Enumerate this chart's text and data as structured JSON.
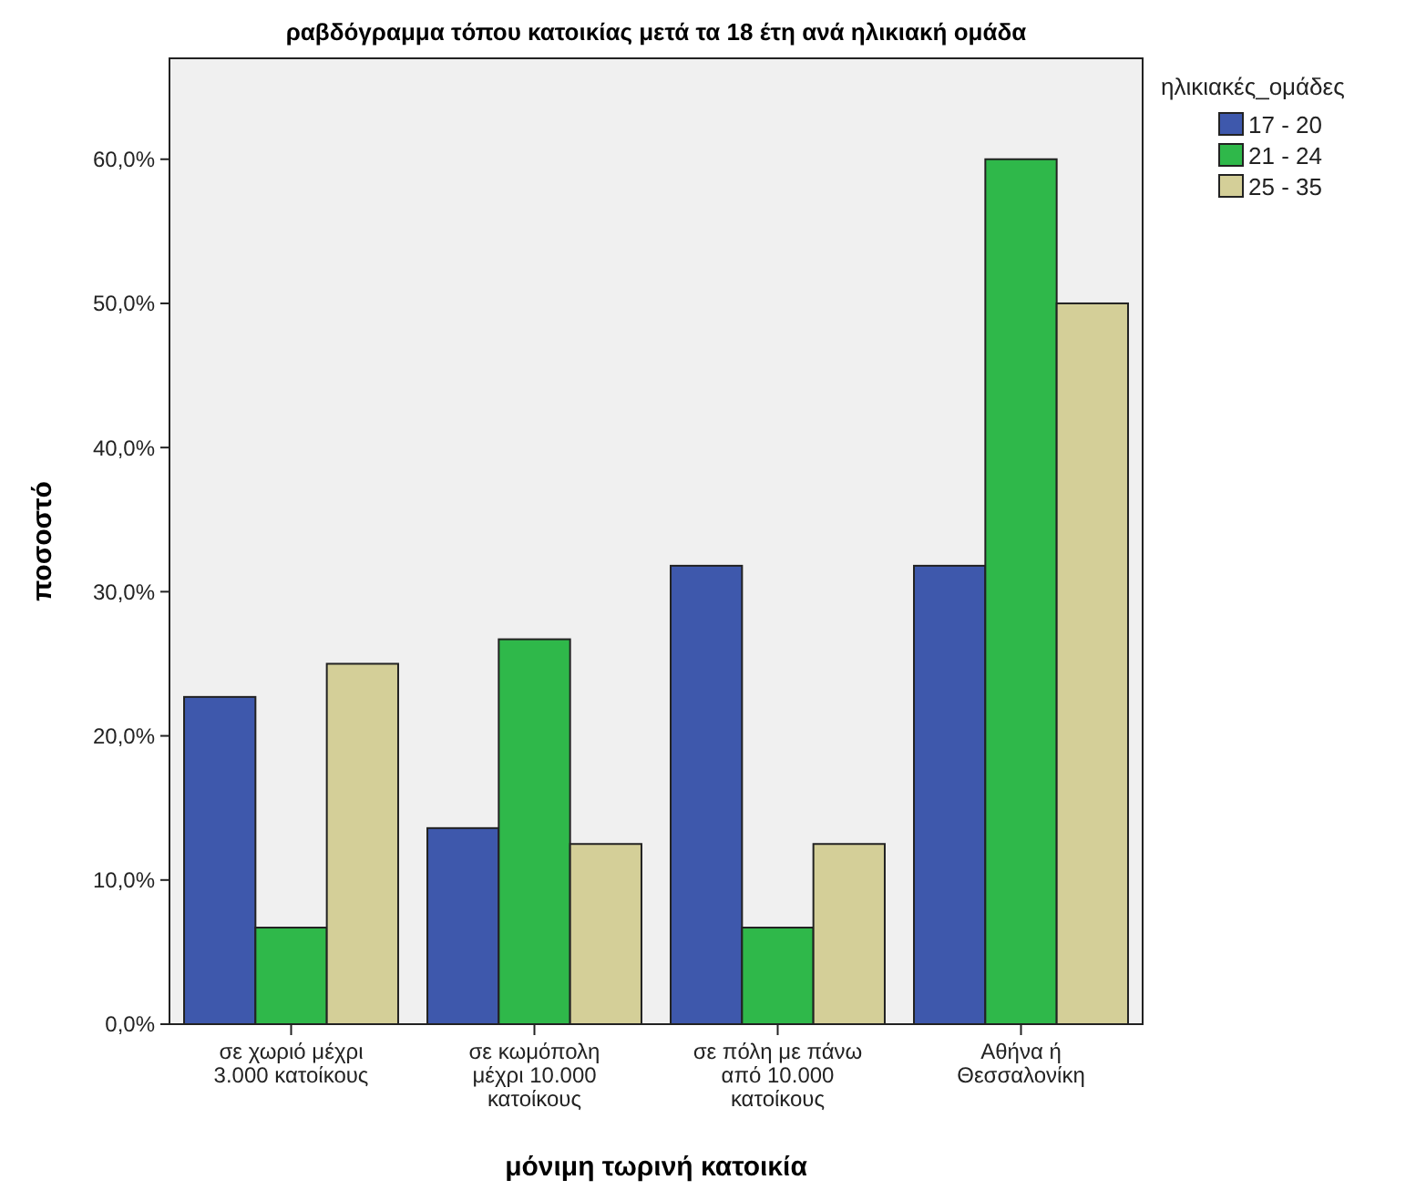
{
  "chart_data": {
    "type": "bar",
    "title": "ραβδόγραμμα τόπου κατοικίας μετά τα 18 έτη ανά ηλικιακή ομάδα",
    "xlabel": "μόνιμη τωρινή κατοικία",
    "ylabel": "ποσοστό",
    "legend_title": "ηλικιακές_ομάδες",
    "legend": "right",
    "grid": false,
    "categories": [
      "σε χωριό μέχρι 3.000 κατοίκους",
      "σε κωμόπολη μέχρι 10.000 κατοίκους",
      "σε πόλη με πάνω από 10.000 κατοίκους",
      "Αθήνα ή Θεσσαλονίκη"
    ],
    "series": [
      {
        "name": "17 - 20",
        "color": "#3e58ac",
        "values": [
          22.7,
          13.6,
          31.8,
          31.8
        ]
      },
      {
        "name": "21 - 24",
        "color": "#2fb84a",
        "values": [
          6.7,
          26.7,
          6.7,
          60.0
        ]
      },
      {
        "name": "25 - 35",
        "color": "#d4cf98",
        "values": [
          25.0,
          12.5,
          12.5,
          50.0
        ]
      }
    ],
    "ylim": [
      0,
      67
    ],
    "yticks": [
      {
        "value": 0,
        "label": "0,0%"
      },
      {
        "value": 10,
        "label": "10,0%"
      },
      {
        "value": 20,
        "label": "20,0%"
      },
      {
        "value": 30,
        "label": "30,0%"
      },
      {
        "value": 40,
        "label": "40,0%"
      },
      {
        "value": 50,
        "label": "50,0%"
      },
      {
        "value": 60,
        "label": "60,0%"
      }
    ]
  }
}
